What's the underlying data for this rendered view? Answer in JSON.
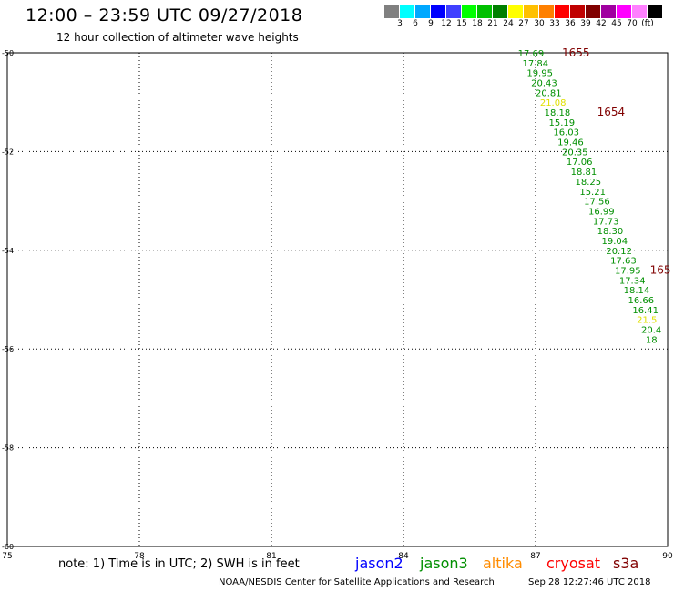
{
  "header": {
    "title": "12:00 – 23:59 UTC 09/27/2018",
    "subtitle": "12 hour collection of altimeter wave heights"
  },
  "color_scale": {
    "colors": [
      "#808080",
      "#00ffff",
      "#00a8ff",
      "#0000ff",
      "#4040ff",
      "#00ff00",
      "#00c000",
      "#008000",
      "#ffff00",
      "#ffc000",
      "#ff8000",
      "#ff0000",
      "#c00000",
      "#800000",
      "#a000a0",
      "#ff00ff",
      "#ff80ff",
      "#000000"
    ],
    "labels": [
      "3",
      "6",
      "9",
      "12",
      "15",
      "18",
      "21",
      "24",
      "27",
      "30",
      "33",
      "36",
      "39",
      "42",
      "45",
      "70",
      "(ft)"
    ]
  },
  "map": {
    "lon_min": 75,
    "lon_max": 90,
    "lat_top": -50,
    "lat_bottom": -60,
    "lon_ticks": [
      {
        "value": 75,
        "label": "75"
      },
      {
        "value": 78,
        "label": "78"
      },
      {
        "value": 81,
        "label": "81"
      },
      {
        "value": 84,
        "label": "84"
      },
      {
        "value": 87,
        "label": "87"
      },
      {
        "value": 90,
        "label": "90"
      }
    ],
    "lat_ticks": [
      {
        "value": -50,
        "label": "-50"
      },
      {
        "value": -52,
        "label": "-52"
      },
      {
        "value": -54,
        "label": "-54"
      },
      {
        "value": -56,
        "label": "-56"
      },
      {
        "value": -58,
        "label": "-58"
      },
      {
        "value": -60,
        "label": "-60"
      }
    ],
    "grid_color": "#000000",
    "observations": [
      {
        "lon": 86.6,
        "lat": -50.0,
        "value": "17.69",
        "color": "#008f00"
      },
      {
        "lon": 86.7,
        "lat": -50.2,
        "value": "17.84",
        "color": "#008f00"
      },
      {
        "lon": 86.8,
        "lat": -50.4,
        "value": "19.95",
        "color": "#008f00"
      },
      {
        "lon": 86.9,
        "lat": -50.6,
        "value": "20.43",
        "color": "#008f00"
      },
      {
        "lon": 87.0,
        "lat": -50.8,
        "value": "20.81",
        "color": "#008f00"
      },
      {
        "lon": 87.1,
        "lat": -51.0,
        "value": "21.08",
        "color": "#e0e000"
      },
      {
        "lon": 87.2,
        "lat": -51.2,
        "value": "18.18",
        "color": "#008f00"
      },
      {
        "lon": 87.3,
        "lat": -51.4,
        "value": "15.19",
        "color": "#008f00"
      },
      {
        "lon": 87.4,
        "lat": -51.6,
        "value": "16.03",
        "color": "#008f00"
      },
      {
        "lon": 87.5,
        "lat": -51.8,
        "value": "19.46",
        "color": "#008f00"
      },
      {
        "lon": 87.6,
        "lat": -52.0,
        "value": "20.35",
        "color": "#008f00"
      },
      {
        "lon": 87.7,
        "lat": -52.2,
        "value": "17.06",
        "color": "#008f00"
      },
      {
        "lon": 87.8,
        "lat": -52.4,
        "value": "18.81",
        "color": "#008f00"
      },
      {
        "lon": 87.9,
        "lat": -52.6,
        "value": "18.25",
        "color": "#008f00"
      },
      {
        "lon": 88.0,
        "lat": -52.8,
        "value": "15.21",
        "color": "#008f00"
      },
      {
        "lon": 88.1,
        "lat": -53.0,
        "value": "17.56",
        "color": "#008f00"
      },
      {
        "lon": 88.2,
        "lat": -53.2,
        "value": "16.99",
        "color": "#008f00"
      },
      {
        "lon": 88.3,
        "lat": -53.4,
        "value": "17.73",
        "color": "#008f00"
      },
      {
        "lon": 88.4,
        "lat": -53.6,
        "value": "18.30",
        "color": "#008f00"
      },
      {
        "lon": 88.5,
        "lat": -53.8,
        "value": "19.04",
        "color": "#008f00"
      },
      {
        "lon": 88.6,
        "lat": -54.0,
        "value": "20.12",
        "color": "#008f00"
      },
      {
        "lon": 88.7,
        "lat": -54.2,
        "value": "17.63",
        "color": "#008f00"
      },
      {
        "lon": 88.8,
        "lat": -54.4,
        "value": "17.95",
        "color": "#008f00"
      },
      {
        "lon": 88.9,
        "lat": -54.6,
        "value": "17.34",
        "color": "#008f00"
      },
      {
        "lon": 89.0,
        "lat": -54.8,
        "value": "18.14",
        "color": "#008f00"
      },
      {
        "lon": 89.1,
        "lat": -55.0,
        "value": "16.66",
        "color": "#008f00"
      },
      {
        "lon": 89.2,
        "lat": -55.2,
        "value": "16.41",
        "color": "#008f00"
      },
      {
        "lon": 89.3,
        "lat": -55.4,
        "value": "21.5",
        "color": "#e0e000"
      },
      {
        "lon": 89.4,
        "lat": -55.6,
        "value": "20.4",
        "color": "#008f00"
      },
      {
        "lon": 89.5,
        "lat": -55.8,
        "value": "18",
        "color": "#008f00"
      }
    ],
    "time_labels": [
      {
        "lon": 87.6,
        "lat": -50.0,
        "text": "1655"
      },
      {
        "lon": 88.4,
        "lat": -51.2,
        "text": "1654"
      },
      {
        "lon": 89.6,
        "lat": -54.4,
        "text": "165"
      }
    ],
    "time_label_color": "#800000"
  },
  "footer": {
    "note": "note: 1) Time is in UTC; 2) SWH is in feet",
    "satellites": [
      {
        "name": "jason2",
        "color": "#0000ff"
      },
      {
        "name": "jason3",
        "color": "#008f00"
      },
      {
        "name": "altika",
        "color": "#ff8c00"
      },
      {
        "name": "cryosat",
        "color": "#ff0000"
      },
      {
        "name": "s3a",
        "color": "#800000"
      }
    ],
    "credit": "NOAA/NESDIS Center for Satellite Applications and Research",
    "timestamp": "Sep 28 12:27:46 UTC 2018"
  }
}
